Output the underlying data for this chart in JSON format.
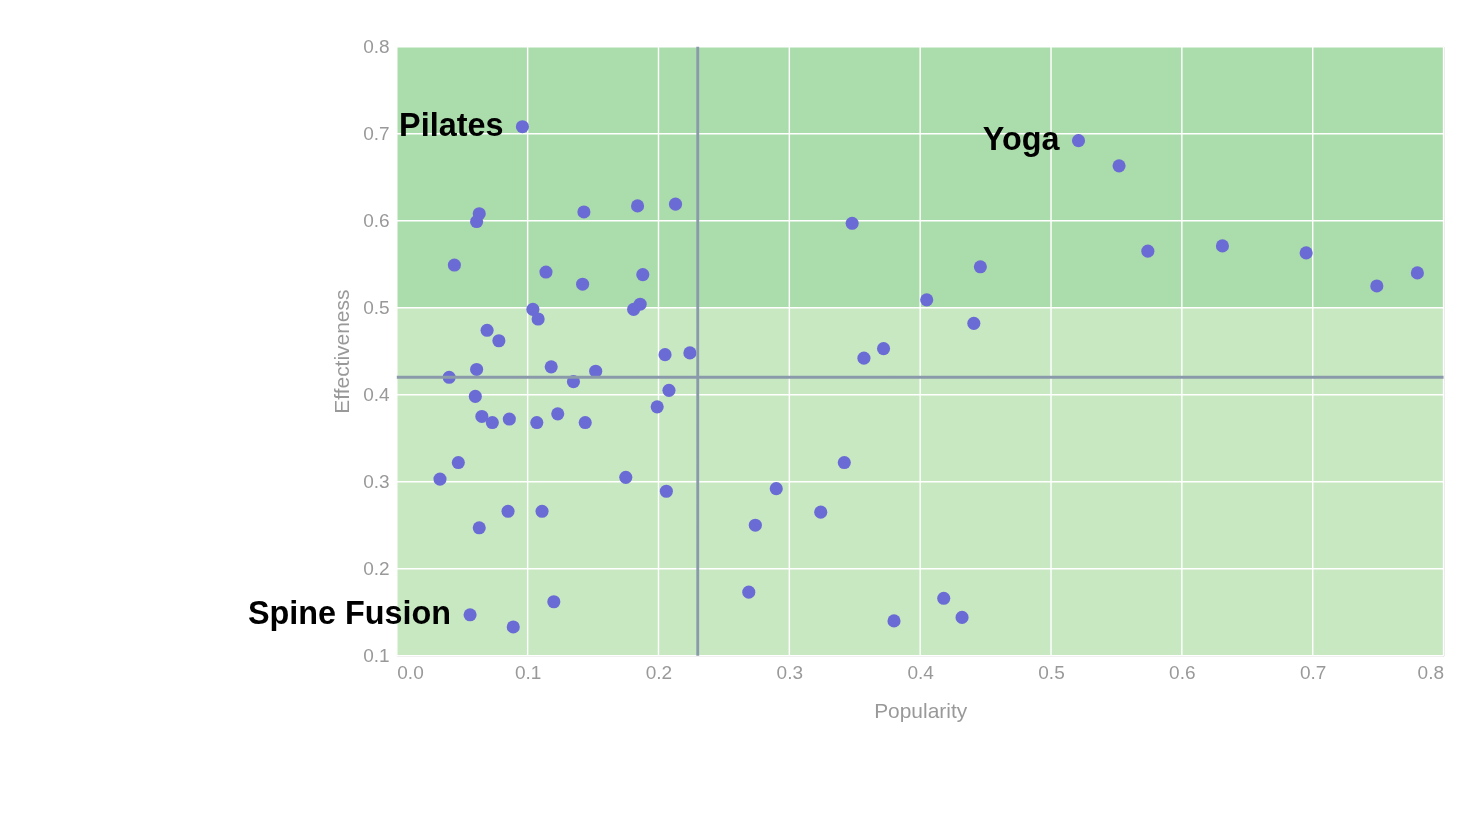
{
  "chart_data": {
    "type": "scatter",
    "xlabel": "Popularity",
    "ylabel": "Effectiveness",
    "xlim": [
      0.0,
      0.8
    ],
    "ylim": [
      0.1,
      0.8
    ],
    "xticks": [
      {
        "value": 0.0,
        "label": "0.0"
      },
      0.1,
      0.2,
      0.3,
      0.4,
      0.5,
      0.6,
      0.7,
      0.8
    ],
    "yticks": [
      0.1,
      0.2,
      0.3,
      0.4,
      0.5,
      0.6,
      0.7,
      0.8
    ],
    "grid": true,
    "marker": "circle",
    "bands": [
      {
        "axis": "y",
        "from": 0.1,
        "to": 0.5,
        "label": null,
        "color": "#c8e8c2"
      },
      {
        "axis": "y",
        "from": 0.5,
        "to": 0.8,
        "label": null,
        "color": "#abdcab"
      }
    ],
    "ref_lines": [
      {
        "axis": "x",
        "value": 0.23,
        "label": null,
        "color": "#8a9aaa"
      },
      {
        "axis": "y",
        "value": 0.42,
        "label": null,
        "color": "#8a9aaa"
      }
    ],
    "annotations": [
      {
        "text": "Pilates",
        "x": 0.096,
        "y": 0.708
      },
      {
        "text": "Yoga",
        "x": 0.521,
        "y": 0.692
      },
      {
        "text": "Spine Fusion",
        "x": 0.056,
        "y": 0.147
      }
    ],
    "series": [
      {
        "color": "#6b6bd6",
        "x": [
          0.096,
          0.521,
          0.552,
          0.063,
          0.061,
          0.044,
          0.143,
          0.184,
          0.213,
          0.114,
          0.142,
          0.188,
          0.181,
          0.186,
          0.104,
          0.108,
          0.069,
          0.078,
          0.205,
          0.224,
          0.061,
          0.04,
          0.118,
          0.152,
          0.135,
          0.06,
          0.208,
          0.199,
          0.065,
          0.073,
          0.086,
          0.107,
          0.123,
          0.144,
          0.047,
          0.033,
          0.175,
          0.206,
          0.085,
          0.111,
          0.063,
          0.056,
          0.089,
          0.12,
          0.348,
          0.446,
          0.405,
          0.441,
          0.372,
          0.357,
          0.342,
          0.29,
          0.324,
          0.274,
          0.269,
          0.38,
          0.418,
          0.432,
          0.574,
          0.631,
          0.695,
          0.749,
          0.78
        ],
        "values": [
          0.708,
          0.692,
          0.663,
          0.608,
          0.599,
          0.549,
          0.61,
          0.617,
          0.619,
          0.541,
          0.527,
          0.538,
          0.498,
          0.504,
          0.498,
          0.487,
          0.474,
          0.462,
          0.446,
          0.448,
          0.429,
          0.42,
          0.432,
          0.427,
          0.415,
          0.398,
          0.405,
          0.386,
          0.375,
          0.368,
          0.372,
          0.368,
          0.378,
          0.368,
          0.322,
          0.303,
          0.305,
          0.289,
          0.266,
          0.266,
          0.247,
          0.147,
          0.133,
          0.162,
          0.597,
          0.547,
          0.509,
          0.482,
          0.453,
          0.442,
          0.322,
          0.292,
          0.265,
          0.25,
          0.173,
          0.14,
          0.166,
          0.144,
          0.565,
          0.571,
          0.563,
          0.525,
          0.54
        ]
      }
    ]
  }
}
